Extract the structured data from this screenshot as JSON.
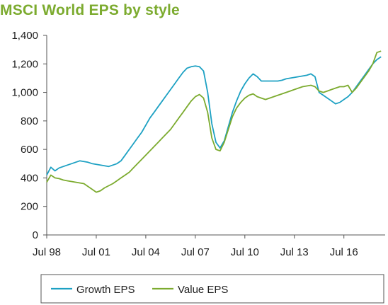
{
  "chart_data": {
    "type": "line",
    "title": "MSCI World EPS by style",
    "xlabel": "",
    "ylabel": "",
    "x_ticks": [
      "Jul 98",
      "Jul 01",
      "Jul 04",
      "Jul 07",
      "Jul 10",
      "Jul 13",
      "Jul 16"
    ],
    "y_ticks": [
      "0",
      "200",
      "400",
      "600",
      "800",
      "1,000",
      "1,200",
      "1,400"
    ],
    "xlim": [
      "1998-07",
      "2019-01"
    ],
    "ylim": [
      0,
      1400
    ],
    "grid": false,
    "legend_position": "bottom",
    "colors": {
      "growth": "#1da1c3",
      "value": "#7cab2f",
      "axis": "#555555",
      "legend_border": "#555555"
    },
    "series": [
      {
        "name": "Growth EPS",
        "key": "growth",
        "x": [
          "1998-07",
          "1998-10",
          "1999-01",
          "1999-04",
          "1999-07",
          "1999-10",
          "2000-01",
          "2000-04",
          "2000-07",
          "2000-10",
          "2001-01",
          "2001-04",
          "2001-07",
          "2001-10",
          "2002-01",
          "2002-04",
          "2002-07",
          "2002-10",
          "2003-01",
          "2003-04",
          "2003-07",
          "2003-10",
          "2004-01",
          "2004-04",
          "2004-07",
          "2004-10",
          "2005-01",
          "2005-04",
          "2005-07",
          "2005-10",
          "2006-01",
          "2006-04",
          "2006-07",
          "2006-10",
          "2007-01",
          "2007-04",
          "2007-07",
          "2007-10",
          "2008-01",
          "2008-04",
          "2008-07",
          "2008-10",
          "2009-01",
          "2009-04",
          "2009-07",
          "2009-10",
          "2010-01",
          "2010-04",
          "2010-07",
          "2010-10",
          "2011-01",
          "2011-04",
          "2011-07",
          "2011-10",
          "2012-01",
          "2012-04",
          "2012-07",
          "2012-10",
          "2013-01",
          "2013-04",
          "2013-07",
          "2013-10",
          "2014-01",
          "2014-04",
          "2014-07",
          "2014-10",
          "2015-01",
          "2015-04",
          "2015-07",
          "2015-10",
          "2016-01",
          "2016-04",
          "2016-07",
          "2016-10",
          "2017-01",
          "2017-04",
          "2017-07",
          "2017-10",
          "2018-01",
          "2018-04",
          "2018-07",
          "2018-10"
        ],
        "values": [
          420,
          475,
          450,
          470,
          480,
          490,
          500,
          510,
          520,
          515,
          510,
          500,
          495,
          490,
          485,
          480,
          490,
          500,
          520,
          560,
          600,
          640,
          680,
          720,
          770,
          820,
          860,
          900,
          940,
          980,
          1020,
          1060,
          1100,
          1140,
          1170,
          1180,
          1185,
          1180,
          1150,
          1000,
          780,
          650,
          610,
          660,
          760,
          860,
          940,
          1010,
          1060,
          1100,
          1130,
          1110,
          1080,
          1080,
          1080,
          1080,
          1080,
          1085,
          1095,
          1100,
          1105,
          1110,
          1115,
          1120,
          1130,
          1110,
          1000,
          980,
          960,
          940,
          920,
          930,
          950,
          970,
          1000,
          1040,
          1080,
          1120,
          1160,
          1200,
          1230,
          1250
        ]
      },
      {
        "name": "Value EPS",
        "key": "value",
        "x": [
          "1998-07",
          "1998-10",
          "1999-01",
          "1999-04",
          "1999-07",
          "1999-10",
          "2000-01",
          "2000-04",
          "2000-07",
          "2000-10",
          "2001-01",
          "2001-04",
          "2001-07",
          "2001-10",
          "2002-01",
          "2002-04",
          "2002-07",
          "2002-10",
          "2003-01",
          "2003-04",
          "2003-07",
          "2003-10",
          "2004-01",
          "2004-04",
          "2004-07",
          "2004-10",
          "2005-01",
          "2005-04",
          "2005-07",
          "2005-10",
          "2006-01",
          "2006-04",
          "2006-07",
          "2006-10",
          "2007-01",
          "2007-04",
          "2007-07",
          "2007-10",
          "2008-01",
          "2008-04",
          "2008-07",
          "2008-10",
          "2009-01",
          "2009-04",
          "2009-07",
          "2009-10",
          "2010-01",
          "2010-04",
          "2010-07",
          "2010-10",
          "2011-01",
          "2011-04",
          "2011-07",
          "2011-10",
          "2012-01",
          "2012-04",
          "2012-07",
          "2012-10",
          "2013-01",
          "2013-04",
          "2013-07",
          "2013-10",
          "2014-01",
          "2014-04",
          "2014-07",
          "2014-10",
          "2015-01",
          "2015-04",
          "2015-07",
          "2015-10",
          "2016-01",
          "2016-04",
          "2016-07",
          "2016-10",
          "2017-01",
          "2017-04",
          "2017-07",
          "2017-10",
          "2018-01",
          "2018-04",
          "2018-07",
          "2018-10"
        ],
        "values": [
          370,
          420,
          400,
          395,
          385,
          380,
          375,
          370,
          365,
          360,
          340,
          320,
          300,
          310,
          330,
          345,
          360,
          380,
          400,
          420,
          440,
          470,
          500,
          530,
          560,
          590,
          620,
          650,
          680,
          710,
          740,
          780,
          820,
          860,
          900,
          940,
          970,
          985,
          960,
          860,
          680,
          600,
          590,
          650,
          740,
          830,
          890,
          930,
          960,
          980,
          990,
          970,
          960,
          950,
          960,
          970,
          980,
          990,
          1000,
          1010,
          1020,
          1030,
          1040,
          1045,
          1050,
          1040,
          1010,
          1000,
          1010,
          1020,
          1030,
          1040,
          1040,
          1050,
          1000,
          1030,
          1070,
          1110,
          1150,
          1200,
          1280,
          1290
        ]
      }
    ]
  }
}
